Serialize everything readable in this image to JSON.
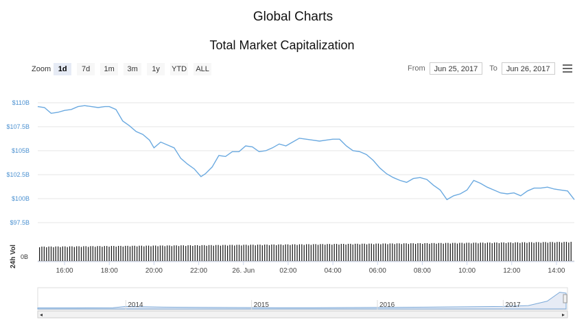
{
  "header": {
    "page_title": "Global Charts",
    "chart_title": "Total Market Capitalization"
  },
  "zoom": {
    "label": "Zoom",
    "buttons": [
      "1d",
      "7d",
      "1m",
      "3m",
      "1y",
      "YTD",
      "ALL"
    ],
    "active": "1d"
  },
  "range": {
    "from_label": "From",
    "from_value": "Jun 25, 2017",
    "to_label": "To",
    "to_value": "Jun 26, 2017"
  },
  "menu_icon": "hamburger-menu-icon",
  "colors": {
    "line": "#6aa9e0",
    "volume": "#111111",
    "axis_label": "#4a90d0",
    "navigator_fill": "#e6ebf5"
  },
  "chart_data": {
    "type": "line",
    "title": "Total Market Capitalization",
    "ylabel": "",
    "ylim": [
      97.5,
      110
    ],
    "y_ticks": [
      "$110B",
      "$107.5B",
      "$105B",
      "$102.5B",
      "$100B",
      "$97.5B"
    ],
    "y_tick_values": [
      110,
      107.5,
      105,
      102.5,
      100,
      97.5
    ],
    "x_ticks": [
      "16:00",
      "18:00",
      "20:00",
      "22:00",
      "26. Jun",
      "02:00",
      "04:00",
      "06:00",
      "08:00",
      "10:00",
      "12:00",
      "14:00"
    ],
    "x_tick_hours": [
      16,
      18,
      20,
      22,
      24,
      26,
      28,
      30,
      32,
      34,
      36,
      38
    ],
    "x_range_hours": [
      14.8,
      38.8
    ],
    "grid": true,
    "series": [
      {
        "x": [
          14.8,
          15.1,
          15.4,
          15.7,
          16.0,
          16.3,
          16.6,
          16.9,
          17.2,
          17.5,
          17.8,
          18.0,
          18.3,
          18.6,
          18.9,
          19.2,
          19.5,
          19.8,
          20.0,
          20.3,
          20.6,
          20.9,
          21.2,
          21.5,
          21.8,
          22.1,
          22.3,
          22.6,
          22.9,
          23.2,
          23.5,
          23.8,
          24.1,
          24.4,
          24.7,
          25.0,
          25.3,
          25.6,
          25.9,
          26.2,
          26.5,
          26.8,
          27.1,
          27.4,
          27.7,
          28.0,
          28.3,
          28.6,
          28.9,
          29.2,
          29.5,
          29.8,
          30.1,
          30.4,
          30.7,
          31.0,
          31.3,
          31.6,
          31.9,
          32.2,
          32.5,
          32.8,
          33.1,
          33.4,
          33.7,
          34.0,
          34.3,
          34.6,
          34.9,
          35.2,
          35.5,
          35.8,
          36.1,
          36.4,
          36.7,
          37.0,
          37.3,
          37.6,
          37.9,
          38.2,
          38.5,
          38.8
        ],
        "y": [
          109.6,
          109.5,
          108.9,
          109.0,
          109.2,
          109.3,
          109.6,
          109.7,
          109.6,
          109.5,
          109.6,
          109.6,
          109.3,
          108.1,
          107.6,
          107.0,
          106.7,
          106.1,
          105.3,
          105.9,
          105.6,
          105.3,
          104.2,
          103.6,
          103.1,
          102.3,
          102.6,
          103.3,
          104.5,
          104.4,
          104.9,
          104.9,
          105.5,
          105.4,
          104.9,
          105.0,
          105.3,
          105.7,
          105.5,
          105.9,
          106.3,
          106.2,
          106.1,
          106.0,
          106.1,
          106.2,
          106.2,
          105.5,
          105.0,
          104.9,
          104.6,
          104.0,
          103.2,
          102.6,
          102.2,
          101.9,
          101.7,
          102.1,
          102.2,
          102.0,
          101.4,
          100.9,
          99.9,
          100.3,
          100.5,
          100.9,
          101.9,
          101.6,
          101.2,
          100.9,
          100.6,
          100.5,
          100.6,
          100.3,
          100.8,
          101.1,
          101.1,
          101.2,
          101.0,
          100.9,
          100.8,
          99.9
        ]
      }
    ],
    "volume": {
      "label": "24h Vol",
      "y_tick": "0B"
    },
    "navigator": {
      "type": "area",
      "x_labels": [
        "2014",
        "2015",
        "2016",
        "2017"
      ],
      "x": [
        2013.3,
        2013.6,
        2013.9,
        2014.0,
        2014.3,
        2014.6,
        2014.9,
        2015.2,
        2015.5,
        2015.8,
        2016.1,
        2016.4,
        2016.7,
        2017.0,
        2017.2,
        2017.35,
        2017.45,
        2017.5
      ],
      "y": [
        0.02,
        0.02,
        0.03,
        0.1,
        0.06,
        0.05,
        0.04,
        0.03,
        0.03,
        0.04,
        0.05,
        0.06,
        0.08,
        0.1,
        0.15,
        0.4,
        0.9,
        0.85
      ]
    }
  }
}
